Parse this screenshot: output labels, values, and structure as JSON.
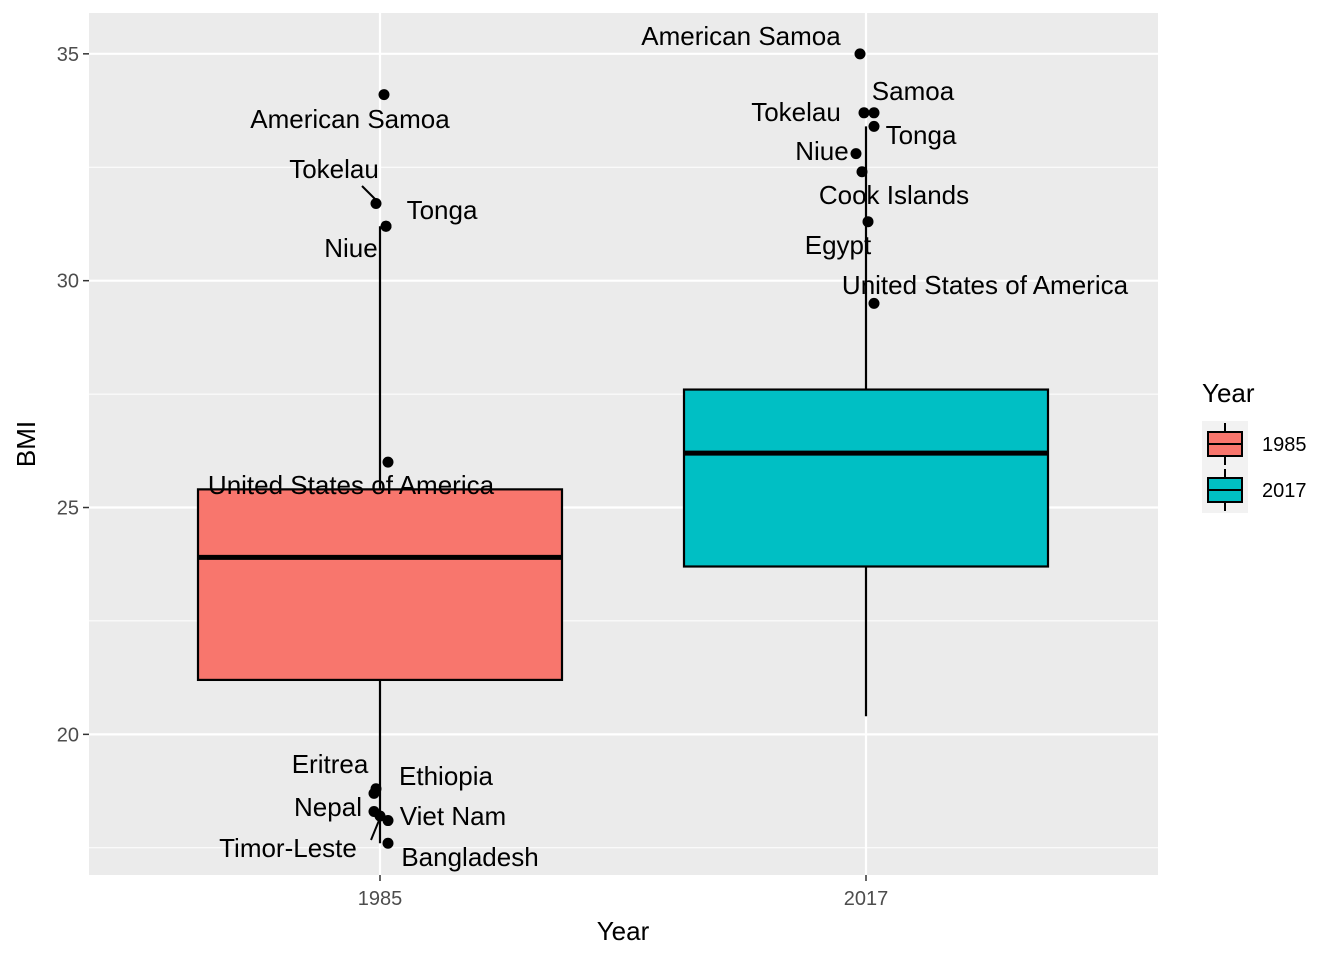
{
  "chart_data": {
    "type": "box",
    "xlabel": "Year",
    "ylabel": "BMI",
    "categories": [
      "1985",
      "2017"
    ],
    "ylim": [
      16.9,
      35.9
    ],
    "yticks": [
      20,
      25,
      30,
      35
    ],
    "grid": true,
    "legend": {
      "title": "Year",
      "position": "right",
      "entries": [
        {
          "label": "1985",
          "color": "#F8766D"
        },
        {
          "label": "2017",
          "color": "#00BFC4"
        }
      ]
    },
    "boxes": [
      {
        "category": "1985",
        "color": "#F8766D",
        "whisker_low": 17.6,
        "q1": 21.2,
        "median": 23.9,
        "q3": 25.4,
        "whisker_high": 31.2
      },
      {
        "category": "2017",
        "color": "#00BFC4",
        "whisker_low": 20.4,
        "q1": 23.7,
        "median": 26.2,
        "q3": 27.6,
        "whisker_high": 33.4
      }
    ],
    "points": [
      {
        "category": "1985",
        "label": "American Samoa",
        "y": 34.1
      },
      {
        "category": "1985",
        "label": "Tokelau",
        "y": 31.7
      },
      {
        "category": "1985",
        "label": "Tonga",
        "y": 31.2
      },
      {
        "category": "1985",
        "label": "Niue",
        "y": 31.2
      },
      {
        "category": "1985",
        "label": "United States of America",
        "y": 26.0
      },
      {
        "category": "1985",
        "label": "Eritrea",
        "y": 18.7
      },
      {
        "category": "1985",
        "label": "Ethiopia",
        "y": 18.8
      },
      {
        "category": "1985",
        "label": "Nepal",
        "y": 18.3
      },
      {
        "category": "1985",
        "label": "Viet Nam",
        "y": 18.1
      },
      {
        "category": "1985",
        "label": "Timor-Leste",
        "y": 18.2
      },
      {
        "category": "1985",
        "label": "Bangladesh",
        "y": 17.6
      },
      {
        "category": "2017",
        "label": "American Samoa",
        "y": 35.0
      },
      {
        "category": "2017",
        "label": "Samoa",
        "y": 33.7
      },
      {
        "category": "2017",
        "label": "Tokelau",
        "y": 33.7
      },
      {
        "category": "2017",
        "label": "Tonga",
        "y": 33.4
      },
      {
        "category": "2017",
        "label": "Niue",
        "y": 32.8
      },
      {
        "category": "2017",
        "label": "Cook Islands",
        "y": 32.4
      },
      {
        "category": "2017",
        "label": "Egypt",
        "y": 31.3
      },
      {
        "category": "2017",
        "label": "United States of America",
        "y": 29.5
      }
    ]
  }
}
